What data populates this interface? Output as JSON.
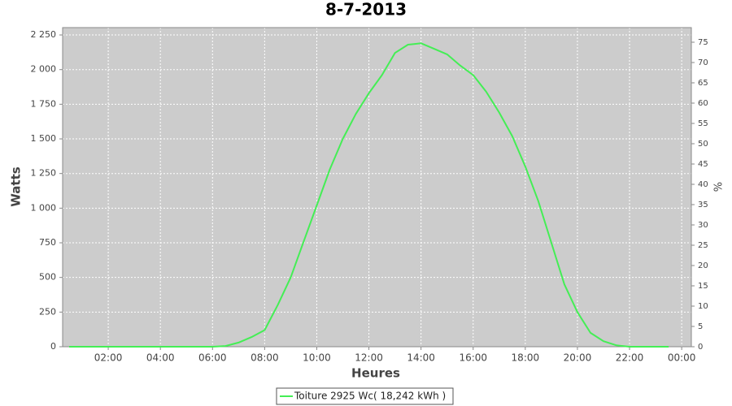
{
  "chart_data": {
    "type": "line",
    "title": "8-7-2013",
    "x_label": "Heures",
    "y_label": "Watts",
    "y2_label": "%",
    "x": [
      0.5,
      1,
      1.5,
      2,
      2.5,
      3,
      3.5,
      4,
      4.5,
      5,
      5.5,
      6,
      6.5,
      7,
      7.5,
      8,
      8.5,
      9,
      9.5,
      10,
      10.5,
      11,
      11.5,
      12,
      12.5,
      13,
      13.5,
      14,
      14.5,
      15,
      15.5,
      16,
      16.5,
      17,
      17.5,
      18,
      18.5,
      19,
      19.5,
      20,
      20.5,
      21,
      21.5,
      22,
      22.5,
      23,
      23.5
    ],
    "series": [
      {
        "name": "Toiture 2925 Wc( 18,242 kWh )",
        "color": "#44ee55",
        "values": [
          0,
          0,
          0,
          0,
          0,
          0,
          0,
          0,
          0,
          0,
          0,
          0,
          5,
          30,
          70,
          120,
          300,
          500,
          760,
          1020,
          1280,
          1500,
          1680,
          1830,
          1960,
          2120,
          2180,
          2190,
          2150,
          2110,
          2030,
          1960,
          1840,
          1690,
          1520,
          1300,
          1050,
          750,
          450,
          250,
          100,
          40,
          10,
          0,
          0,
          0,
          0
        ]
      }
    ],
    "xlim": [
      0.25,
      24.37
    ],
    "xticks": [
      {
        "value": 2,
        "label": "02:00"
      },
      {
        "value": 4,
        "label": "04:00"
      },
      {
        "value": 6,
        "label": "06:00"
      },
      {
        "value": 8,
        "label": "08:00"
      },
      {
        "value": 10,
        "label": "10:00"
      },
      {
        "value": 12,
        "label": "12:00"
      },
      {
        "value": 14,
        "label": "14:00"
      },
      {
        "value": 16,
        "label": "16:00"
      },
      {
        "value": 18,
        "label": "18:00"
      },
      {
        "value": 20,
        "label": "20:00"
      },
      {
        "value": 22,
        "label": "22:00"
      },
      {
        "value": 24,
        "label": "00:00"
      }
    ],
    "ylim": [
      0,
      2303
    ],
    "yticks": [
      0,
      250,
      500,
      750,
      {
        "value": 1000,
        "label": "1 000"
      },
      {
        "value": 1250,
        "label": "1 250"
      },
      {
        "value": 1500,
        "label": "1 500"
      },
      {
        "value": 1750,
        "label": "1 750"
      },
      {
        "value": 2000,
        "label": "2 000"
      },
      {
        "value": 2250,
        "label": "2 250"
      }
    ],
    "y2lim": [
      0,
      78.6
    ],
    "y2ticks": [
      0,
      5,
      10,
      15,
      20,
      25,
      30,
      35,
      40,
      45,
      50,
      55,
      60,
      65,
      70,
      75
    ],
    "grid": true
  }
}
